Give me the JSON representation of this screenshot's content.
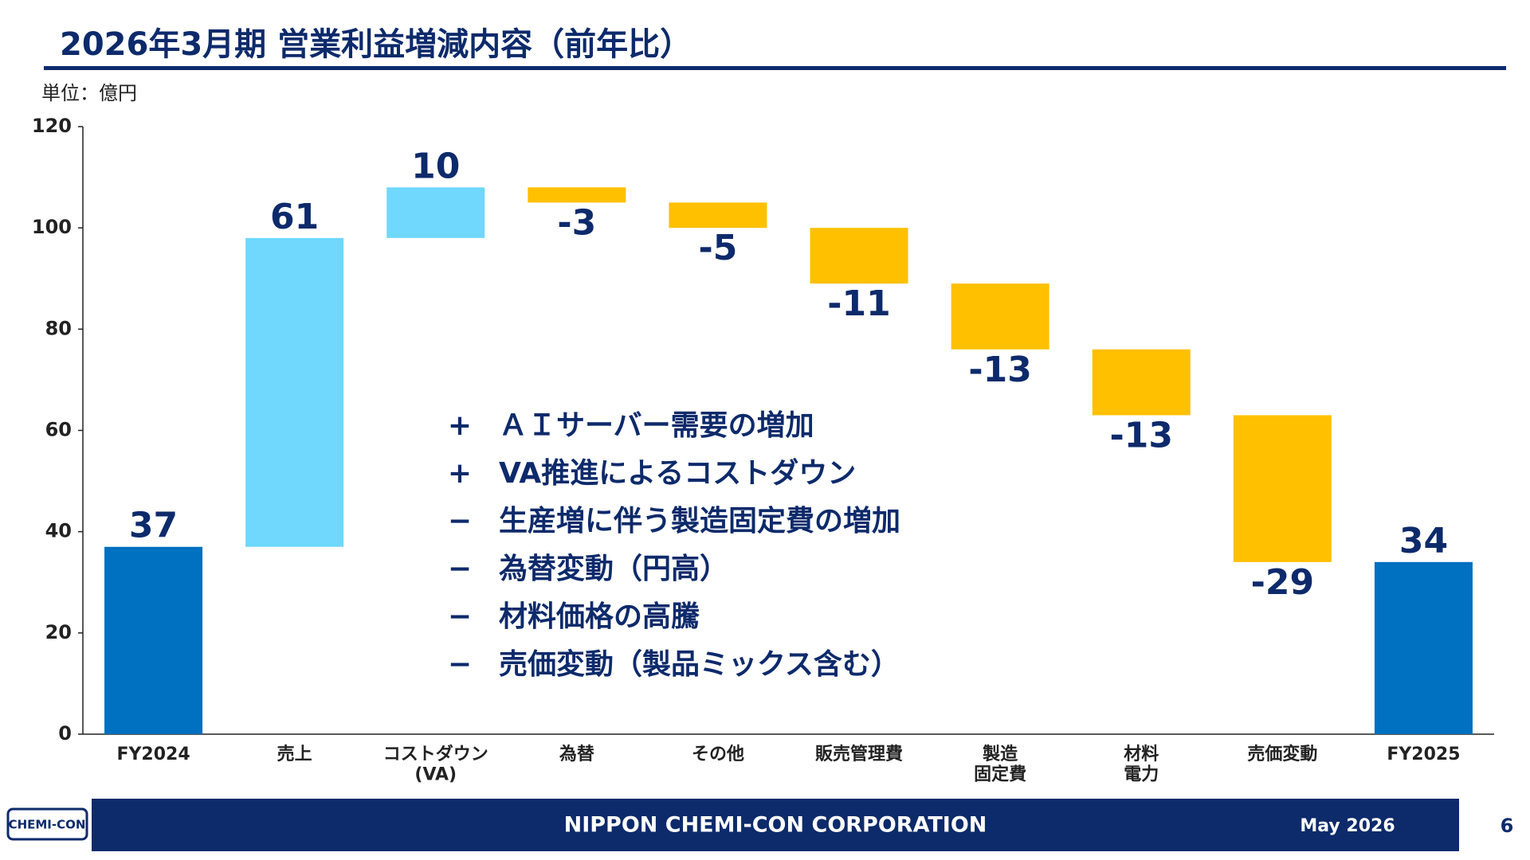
{
  "chart_data": {
    "type": "waterfall",
    "title": "2026年3月期 営業利益増減内容（前年比）",
    "unit_label": "単位：億円",
    "categories": [
      "FY2024",
      "売上",
      "コストダウン\n(VA)",
      "為替",
      "その他",
      "販売管理費",
      "製造\n固定費",
      "材料\n電力",
      "売価変動",
      "FY2025"
    ],
    "values": [
      37,
      61,
      10,
      -3,
      -5,
      -11,
      -13,
      -13,
      -29,
      34
    ],
    "colors": {
      "total": "#0070c0",
      "increase": "#6fd8fc",
      "decrease": "#ffc000"
    },
    "ylim": [
      0,
      120
    ],
    "yticks": [
      0,
      20,
      40,
      60,
      80,
      100,
      120
    ],
    "grid": false,
    "annotations": [
      {
        "sign": "+",
        "text": "ＡＩサーバー需要の増加"
      },
      {
        "sign": "+",
        "text": "VA推進によるコストダウン"
      },
      {
        "sign": "−",
        "text": "生産増に伴う製造固定費の増加"
      },
      {
        "sign": "−",
        "text": "為替変動（円高）"
      },
      {
        "sign": "−",
        "text": "材料価格の高騰"
      },
      {
        "sign": "−",
        "text": "売価変動（製品ミックス含む）"
      }
    ]
  },
  "footer": {
    "logo": "CHEMI-CON",
    "company": "NIPPON CHEMI-CON CORPORATION",
    "date": "May 2026",
    "page": "6"
  }
}
